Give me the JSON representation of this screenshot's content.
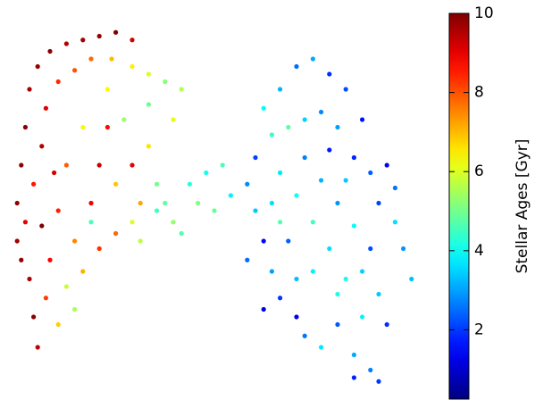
{
  "chart_data": {
    "type": "scatter",
    "colorbar_label": "Stellar Ages [Gyr]",
    "colormap": "jet",
    "xlim": [
      0,
      100
    ],
    "ylim": [
      0,
      100
    ],
    "clim": [
      0.25,
      10
    ],
    "cticks": [
      2,
      4,
      6,
      8,
      10
    ],
    "x": [
      2,
      3,
      2,
      4,
      5,
      7,
      10,
      14,
      18,
      22,
      26,
      30,
      5,
      6,
      7,
      4,
      6,
      8,
      9,
      12,
      16,
      20,
      25,
      30,
      34,
      38,
      42,
      10,
      9,
      12,
      14,
      16,
      20,
      22,
      24,
      18,
      14,
      12,
      26,
      30,
      32,
      34,
      28,
      36,
      38,
      40,
      30,
      26,
      22,
      18,
      16,
      20,
      34,
      40,
      8,
      3,
      11,
      24,
      32,
      36,
      44,
      48,
      52,
      46,
      50,
      54,
      42,
      62,
      66,
      70,
      74,
      78,
      82,
      86,
      64,
      68,
      72,
      76,
      80,
      84,
      88,
      90,
      94,
      96,
      98,
      58,
      60,
      62,
      64,
      66,
      70,
      72,
      76,
      80,
      84,
      88,
      90,
      86,
      90,
      92,
      82,
      78,
      74,
      70,
      66,
      72,
      76,
      80,
      84,
      88,
      86,
      80,
      74,
      68,
      64,
      60,
      78,
      82,
      92,
      94,
      70,
      62,
      58,
      66,
      84
    ],
    "y": [
      50,
      60,
      40,
      70,
      80,
      86,
      90,
      92,
      93,
      94,
      95,
      93,
      30,
      20,
      12,
      45,
      55,
      65,
      75,
      82,
      85,
      88,
      88,
      86,
      84,
      82,
      80,
      35,
      25,
      18,
      28,
      40,
      50,
      60,
      70,
      70,
      60,
      48,
      55,
      60,
      50,
      65,
      72,
      55,
      50,
      45,
      45,
      42,
      38,
      32,
      22,
      45,
      76,
      72,
      44,
      35,
      58,
      80,
      40,
      48,
      55,
      58,
      60,
      50,
      48,
      52,
      42,
      75,
      80,
      86,
      88,
      84,
      80,
      72,
      68,
      70,
      72,
      74,
      70,
      62,
      58,
      50,
      45,
      38,
      30,
      55,
      48,
      40,
      32,
      25,
      20,
      15,
      12,
      18,
      10,
      6,
      3,
      20,
      26,
      18,
      30,
      38,
      45,
      52,
      58,
      62,
      56,
      50,
      44,
      38,
      32,
      26,
      32,
      40,
      50,
      62,
      64,
      56,
      60,
      54,
      30,
      22,
      35,
      45,
      4
    ],
    "ages": [
      9.8,
      9.9,
      9.7,
      9.9,
      9.6,
      9.8,
      9.9,
      9.5,
      9.7,
      9.8,
      10,
      9.2,
      9.6,
      9.9,
      9.4,
      9.0,
      8.6,
      9.5,
      9.1,
      8.4,
      8.0,
      7.8,
      7.0,
      6.5,
      6.0,
      5.2,
      5.6,
      8.8,
      8.2,
      6.8,
      5.8,
      7.5,
      8.9,
      9.3,
      8.7,
      6.2,
      7.9,
      8.5,
      6.9,
      9.0,
      7.2,
      6.6,
      5.4,
      5.0,
      4.8,
      5.3,
      6.0,
      7.8,
      8.3,
      7.1,
      5.5,
      4.6,
      4.9,
      6.1,
      10,
      9.8,
      9.2,
      6.4,
      5.7,
      4.5,
      4.3,
      4.1,
      4.6,
      5.1,
      4.9,
      3.8,
      4.7,
      3.9,
      3.2,
      2.5,
      3.1,
      1.9,
      2.2,
      1.6,
      4.4,
      4.8,
      3.5,
      2.8,
      3.0,
      1.8,
      2.4,
      2.1,
      3.6,
      2.9,
      3.3,
      2.8,
      3.4,
      1.5,
      3.0,
      2.0,
      1.2,
      2.6,
      3.7,
      2.3,
      3.1,
      2.7,
      2.0,
      3.8,
      3.4,
      1.9,
      4.1,
      3.6,
      4.5,
      4.0,
      3.7,
      2.7,
      3.2,
      2.9,
      3.9,
      2.2,
      3.5,
      4.2,
      3.8,
      2.4,
      3.6,
      2.1,
      1.7,
      3.4,
      1.4,
      2.6,
      3.3,
      1.1,
      2.5,
      4.7,
      1.8
    ]
  }
}
